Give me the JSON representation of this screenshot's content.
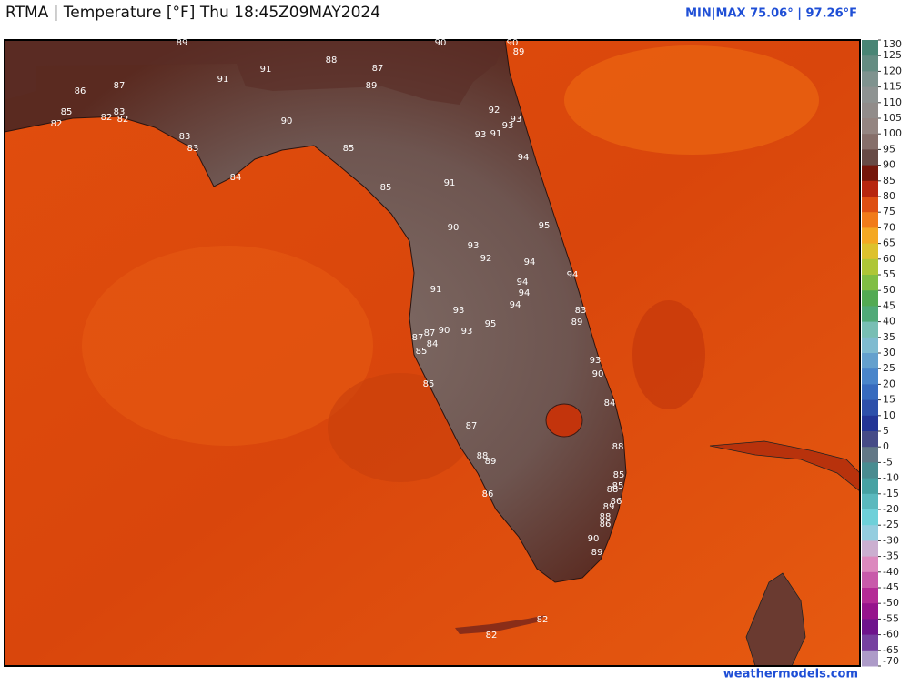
{
  "header": {
    "title": "RTMA | Temperature [°F]  Thu 18:45Z09MAY2024",
    "minmax": "MIN|MAX 75.06° | 97.26°F"
  },
  "footer": "weathermodels.com",
  "colorbar": {
    "ticks": [
      130,
      125,
      120,
      115,
      110,
      105,
      100,
      95,
      90,
      85,
      80,
      75,
      70,
      65,
      60,
      55,
      50,
      45,
      40,
      35,
      30,
      25,
      20,
      15,
      10,
      5,
      0,
      -5,
      -10,
      -15,
      -20,
      -25,
      -30,
      -35,
      -40,
      -45,
      -50,
      -55,
      -60,
      -65,
      -70
    ]
  },
  "station_labels": [
    89,
    90,
    90,
    89,
    91,
    88,
    87,
    91,
    89,
    86,
    87,
    85,
    83,
    82,
    82,
    82,
    90,
    92,
    93,
    93,
    91,
    93,
    83,
    83,
    85,
    94,
    84,
    91,
    85,
    95,
    90,
    93,
    92,
    94,
    94,
    94,
    94,
    91,
    93,
    94,
    83,
    89,
    95,
    87,
    90,
    93,
    87,
    84,
    85,
    93,
    90,
    85,
    84,
    87,
    88,
    88,
    89,
    85,
    85,
    88,
    86,
    86,
    89,
    88,
    86,
    90,
    89,
    82,
    82
  ]
}
